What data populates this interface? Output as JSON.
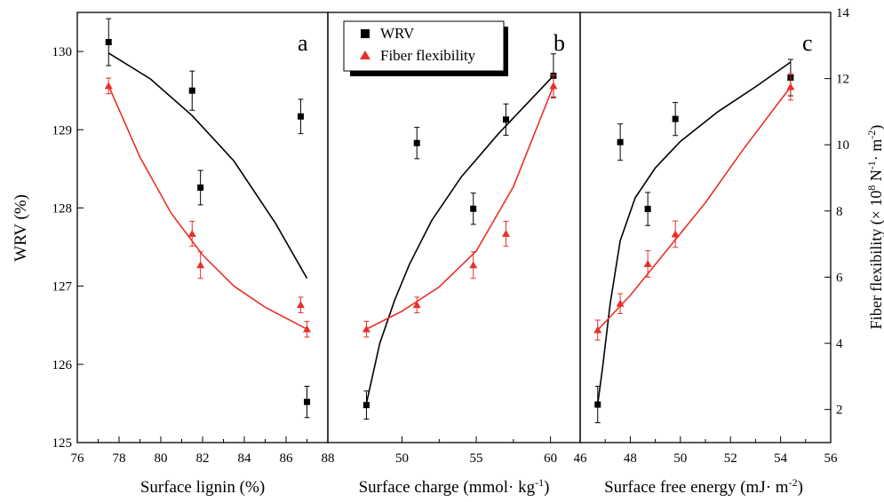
{
  "chart_data": [
    {
      "panel_label": "a",
      "type": "scatter",
      "xlabel": "Surface lignin (%)",
      "ylabel": "WRV (%)",
      "y2label": "Fiber flexibility (× 10^8 N^-1· m^-2)",
      "xlim": [
        76,
        88
      ],
      "ylim": [
        125,
        130.5
      ],
      "y2lim": [
        1,
        14
      ],
      "xticks": [
        "76",
        "78",
        "80",
        "82",
        "84",
        "86",
        "88"
      ],
      "yticks": [
        "125",
        "126",
        "127",
        "128",
        "129",
        "130"
      ],
      "series": [
        {
          "name": "WRV",
          "color": "#000000",
          "marker": "square",
          "axis": "left",
          "x": [
            77.5,
            81.5,
            81.9,
            86.7,
            87.0
          ],
          "y": [
            130.12,
            129.5,
            128.26,
            129.17,
            125.52
          ],
          "err": [
            0.3,
            0.25,
            0.22,
            0.22,
            0.2
          ],
          "fit_x": [
            77.5,
            79.5,
            81.5,
            83.5,
            85.5,
            87.0
          ],
          "fit_y": [
            129.98,
            129.65,
            129.18,
            128.6,
            127.8,
            127.1
          ]
        },
        {
          "name": "Fiber flexibility",
          "color": "#e8302a",
          "marker": "triangle",
          "axis": "left",
          "x": [
            77.5,
            81.5,
            81.9,
            86.7,
            87.0
          ],
          "y": [
            129.56,
            127.67,
            127.27,
            126.76,
            126.45
          ],
          "err": [
            0.1,
            0.16,
            0.17,
            0.1,
            0.1
          ],
          "fit_x": [
            77.5,
            79.0,
            80.5,
            82.0,
            83.5,
            85.0,
            87.0
          ],
          "fit_y": [
            129.56,
            128.65,
            127.93,
            127.4,
            127.0,
            126.73,
            126.45
          ]
        }
      ]
    },
    {
      "panel_label": "b",
      "type": "scatter",
      "xlabel": "Surface charge (mmol· kg^-1)",
      "xlim": [
        45,
        62
      ],
      "xticks": [
        "50",
        "55",
        "60"
      ],
      "series": [
        {
          "name": "WRV",
          "color": "#000000",
          "marker": "square",
          "axis": "left",
          "x": [
            47.6,
            51.0,
            54.8,
            57.0,
            60.2
          ],
          "y": [
            125.48,
            128.83,
            127.99,
            129.13,
            129.69
          ],
          "err": [
            0.18,
            0.2,
            0.2,
            0.2,
            0.28
          ],
          "fit_x": [
            47.6,
            48.5,
            49.5,
            50.5,
            52.0,
            54.0,
            56.5,
            60.2
          ],
          "fit_y": [
            125.5,
            126.27,
            126.82,
            127.28,
            127.84,
            128.4,
            128.95,
            129.69
          ]
        },
        {
          "name": "Fiber flexibility",
          "color": "#e8302a",
          "marker": "triangle",
          "axis": "left",
          "x": [
            47.6,
            51.0,
            54.8,
            57.0,
            60.2
          ],
          "y": [
            126.45,
            126.76,
            127.27,
            127.67,
            129.56
          ],
          "err": [
            0.1,
            0.1,
            0.17,
            0.16,
            0.14
          ],
          "fit_x": [
            47.6,
            50.0,
            52.5,
            55.0,
            57.5,
            60.2
          ],
          "fit_y": [
            126.45,
            126.68,
            126.99,
            127.45,
            128.27,
            129.56
          ]
        }
      ]
    },
    {
      "panel_label": "c",
      "type": "scatter",
      "xlabel": "Surface free energy (mJ· m^-2)",
      "y2label": "Fiber flexibility (× 10^8 N^-1· m^-2)",
      "xlim": [
        46,
        56
      ],
      "xticks": [
        "46",
        "48",
        "50",
        "52",
        "54",
        "56"
      ],
      "y2ticks": [
        "2",
        "4",
        "6",
        "8",
        "10",
        "12",
        "14"
      ],
      "series": [
        {
          "name": "WRV",
          "color": "#000000",
          "marker": "square",
          "axis": "right",
          "x": [
            46.7,
            47.6,
            48.7,
            49.8,
            54.4
          ],
          "y": [
            2.15,
            10.08,
            8.06,
            10.78,
            12.03
          ],
          "err": [
            0.55,
            0.55,
            0.5,
            0.5,
            0.55
          ],
          "fit_x": [
            46.7,
            46.9,
            47.2,
            47.6,
            48.2,
            49.0,
            50.0,
            51.5,
            53.0,
            54.4
          ],
          "fit_y": [
            2.15,
            3.3,
            5.2,
            7.1,
            8.4,
            9.3,
            10.1,
            11.0,
            11.75,
            12.5
          ]
        },
        {
          "name": "Fiber flexibility",
          "color": "#e8302a",
          "marker": "triangle",
          "axis": "right",
          "x": [
            46.7,
            47.6,
            48.7,
            49.8,
            54.4
          ],
          "y": [
            4.4,
            5.2,
            6.4,
            7.3,
            11.75
          ],
          "err": [
            0.3,
            0.3,
            0.4,
            0.4,
            0.4
          ],
          "fit_x": [
            46.7,
            48.0,
            49.5,
            51.0,
            52.5,
            54.4
          ],
          "fit_y": [
            4.4,
            5.45,
            6.85,
            8.25,
            9.85,
            11.75
          ]
        }
      ]
    }
  ],
  "legend": {
    "position": "top-center",
    "items": [
      {
        "label": "WRV",
        "color": "#000000",
        "marker": "square"
      },
      {
        "label": "Fiber flexibility",
        "color": "#e8302a",
        "marker": "triangle"
      }
    ]
  },
  "axis_text": {
    "ylabel": "WRV (%)",
    "y2label_main": "Fiber flexibility (× 10",
    "y2label_exp1": "8",
    "y2label_mid": " N",
    "y2label_exp2": "-1",
    "y2label_end": "· m",
    "y2label_exp3": "-2",
    "y2label_close": ")",
    "xlabel_a": "Surface lignin (%)",
    "xlabel_b_main": "Surface charge (mmol· kg",
    "xlabel_b_exp": "-1",
    "xlabel_b_close": ")",
    "xlabel_c_main": "Surface free energy (mJ· m",
    "xlabel_c_exp": "-2",
    "xlabel_c_close": ")",
    "panel_a": "a",
    "panel_b": "b",
    "panel_c": "c"
  }
}
